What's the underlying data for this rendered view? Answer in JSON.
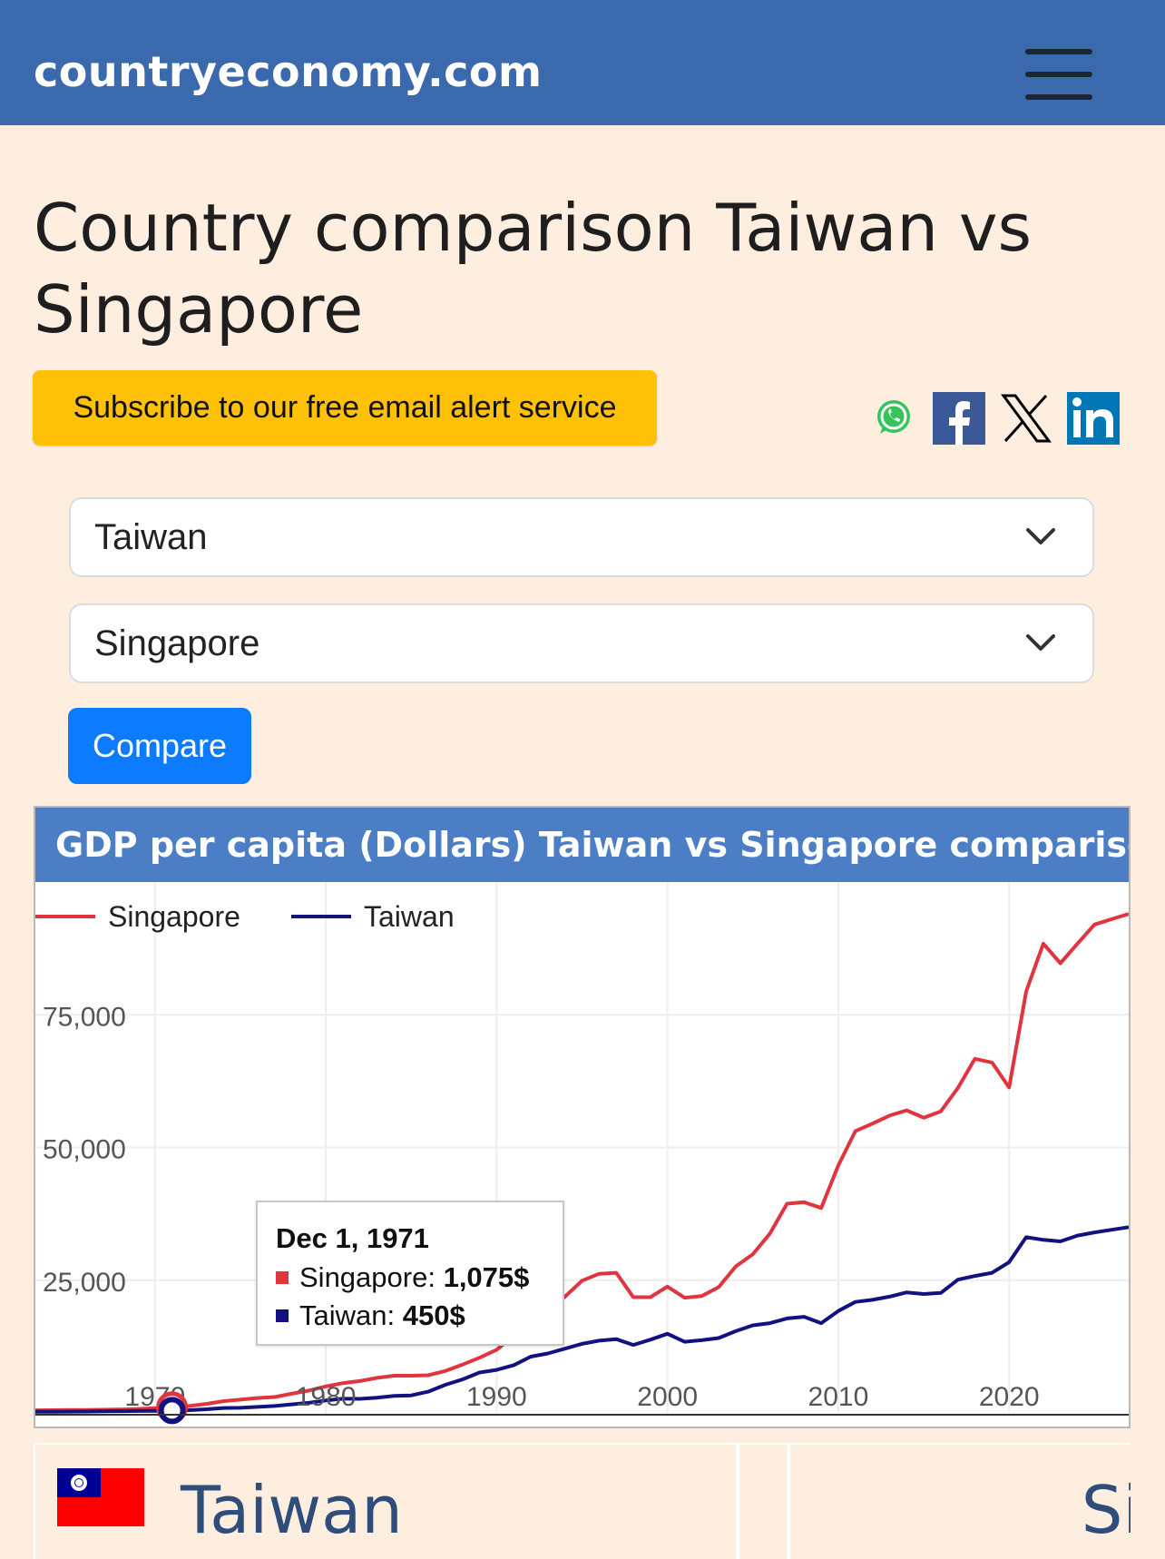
{
  "header": {
    "brand": "countryeconomy.com"
  },
  "page": {
    "title": "Country comparison Taiwan vs Singapore"
  },
  "subscribe": {
    "label": "Subscribe to our free email alert service"
  },
  "share": [
    "whatsapp-icon",
    "facebook-icon",
    "x-icon",
    "linkedin-icon"
  ],
  "form": {
    "country1": "Taiwan",
    "country2": "Singapore",
    "compare_label": "Compare"
  },
  "chart_title": "GDP per capita (Dollars) Taiwan vs Singapore comparison",
  "tooltip": {
    "date": "Dec 1, 1971",
    "rows": [
      {
        "series": "Singapore",
        "value": "1,075$",
        "color": "#e0343f"
      },
      {
        "series": "Taiwan",
        "value": "450$",
        "color": "#11127f"
      }
    ]
  },
  "bottom": {
    "country1": "Taiwan",
    "country2": "Sir"
  },
  "colors": {
    "singapore": "#e0343f",
    "taiwan": "#11127f",
    "header": "#3a69ad",
    "chart_header": "#4c7ec6"
  },
  "chart_data": {
    "type": "line",
    "title": "GDP per capita (Dollars) Taiwan vs Singapore comparison",
    "xlabel": "",
    "ylabel": "",
    "x_ticks": [
      1970,
      1980,
      1990,
      2000,
      2010,
      2020
    ],
    "y_ticks": [
      25000,
      50000,
      75000
    ],
    "y_tick_labels": [
      "25,000",
      "50,000",
      "75,000"
    ],
    "x_tick_labels": [
      "1970",
      "1980",
      "1990",
      "2000",
      "2010",
      "2020"
    ],
    "xlim": [
      1963,
      2027
    ],
    "ylim": [
      0,
      100000
    ],
    "grid": true,
    "legend": "top-left",
    "x": [
      1963,
      1964,
      1965,
      1966,
      1967,
      1968,
      1969,
      1970,
      1971,
      1972,
      1973,
      1974,
      1975,
      1976,
      1977,
      1978,
      1979,
      1980,
      1981,
      1982,
      1983,
      1984,
      1985,
      1986,
      1987,
      1988,
      1989,
      1990,
      1991,
      1992,
      1993,
      1994,
      1995,
      1996,
      1997,
      1998,
      1999,
      2000,
      2001,
      2002,
      2003,
      2004,
      2005,
      2006,
      2007,
      2008,
      2009,
      2010,
      2011,
      2012,
      2013,
      2014,
      2015,
      2016,
      2017,
      2018,
      2019,
      2020,
      2021,
      2022,
      2023,
      2024,
      2025,
      2026,
      2027
    ],
    "series": [
      {
        "name": "Singapore",
        "color": "#e0343f",
        "values": [
          500,
          520,
          540,
          560,
          600,
          650,
          750,
          900,
          1075,
          1300,
          1700,
          2200,
          2500,
          2800,
          3000,
          3600,
          4200,
          5000,
          5600,
          6000,
          6600,
          7000,
          7000,
          7100,
          7900,
          9100,
          10400,
          11900,
          14500,
          16100,
          19000,
          21900,
          24900,
          26200,
          26400,
          21800,
          21800,
          23800,
          21700,
          22000,
          23700,
          27600,
          29900,
          33800,
          39400,
          39700,
          38600,
          46600,
          53100,
          54500,
          56000,
          57000,
          55600,
          56800,
          61200,
          66700,
          66000,
          61300,
          79400,
          88400,
          84700,
          88400,
          92000,
          93000,
          94000
        ]
      },
      {
        "name": "Taiwan",
        "color": "#11127f",
        "values": [
          200,
          220,
          240,
          260,
          290,
          320,
          360,
          400,
          450,
          520,
          690,
          920,
          960,
          1130,
          1300,
          1600,
          1900,
          2350,
          2670,
          2650,
          2850,
          3200,
          3300,
          4000,
          5300,
          6300,
          7600,
          8100,
          9000,
          10600,
          11200,
          12100,
          13000,
          13600,
          13900,
          12800,
          13800,
          14900,
          13400,
          13700,
          14100,
          15400,
          16500,
          16900,
          17800,
          18100,
          16900,
          19200,
          20900,
          21300,
          21900,
          22700,
          22400,
          22600,
          25100,
          25800,
          26400,
          28400,
          33100,
          32600,
          32300,
          33400,
          34000,
          34500,
          35000
        ]
      }
    ]
  }
}
